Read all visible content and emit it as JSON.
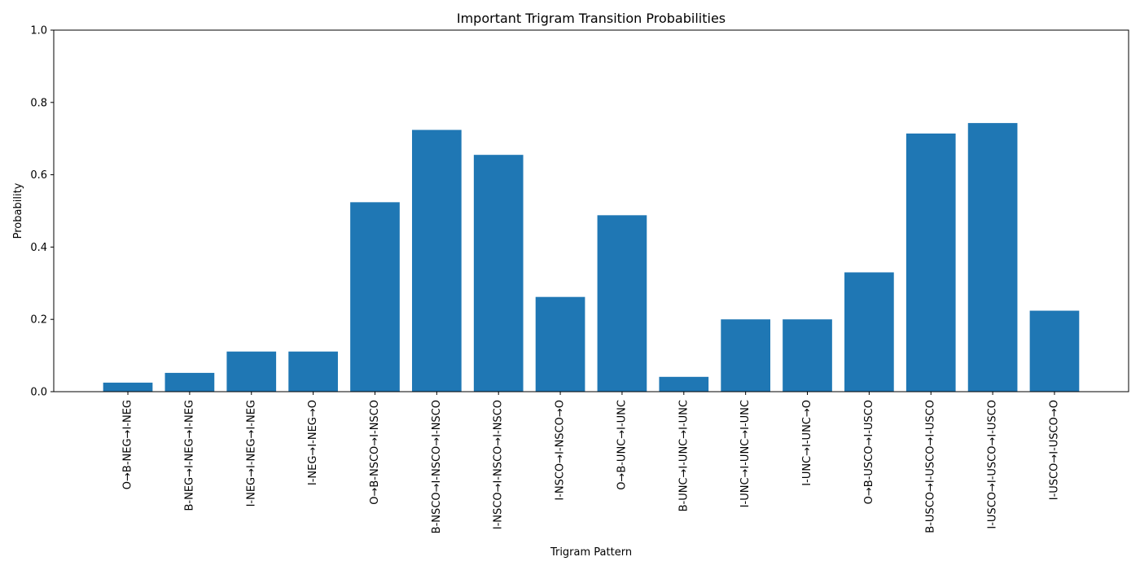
{
  "chart_data": {
    "type": "bar",
    "title": "Important Trigram Transition Probabilities",
    "xlabel": "Trigram Pattern",
    "ylabel": "Probability",
    "ylim": [
      0,
      1.0
    ],
    "yticks": [
      "0.0",
      "0.2",
      "0.4",
      "0.6",
      "0.8",
      "1.0"
    ],
    "grid": false,
    "bar_color": "#1f77b4",
    "categories": [
      "O→B-NEG→I-NEG",
      "B-NEG→I-NEG→I-NEG",
      "I-NEG→I-NEG→I-NEG",
      "I-NEG→I-NEG→O",
      "O→B-NSCO→I-NSCO",
      "B-NSCO→I-NSCO→I-NSCO",
      "I-NSCO→I-NSCO→I-NSCO",
      "I-NSCO→I-NSCO→O",
      "O→B-UNC→I-UNC",
      "B-UNC→I-UNC→I-UNC",
      "I-UNC→I-UNC→I-UNC",
      "I-UNC→I-UNC→O",
      "O→B-USCO→I-USCO",
      "B-USCO→I-USCO→I-USCO",
      "I-USCO→I-USCO→I-USCO",
      "I-USCO→I-USCO→O"
    ],
    "values": [
      0.025,
      0.052,
      0.111,
      0.111,
      0.524,
      0.724,
      0.655,
      0.262,
      0.488,
      0.041,
      0.2,
      0.2,
      0.33,
      0.714,
      0.743,
      0.224
    ]
  }
}
